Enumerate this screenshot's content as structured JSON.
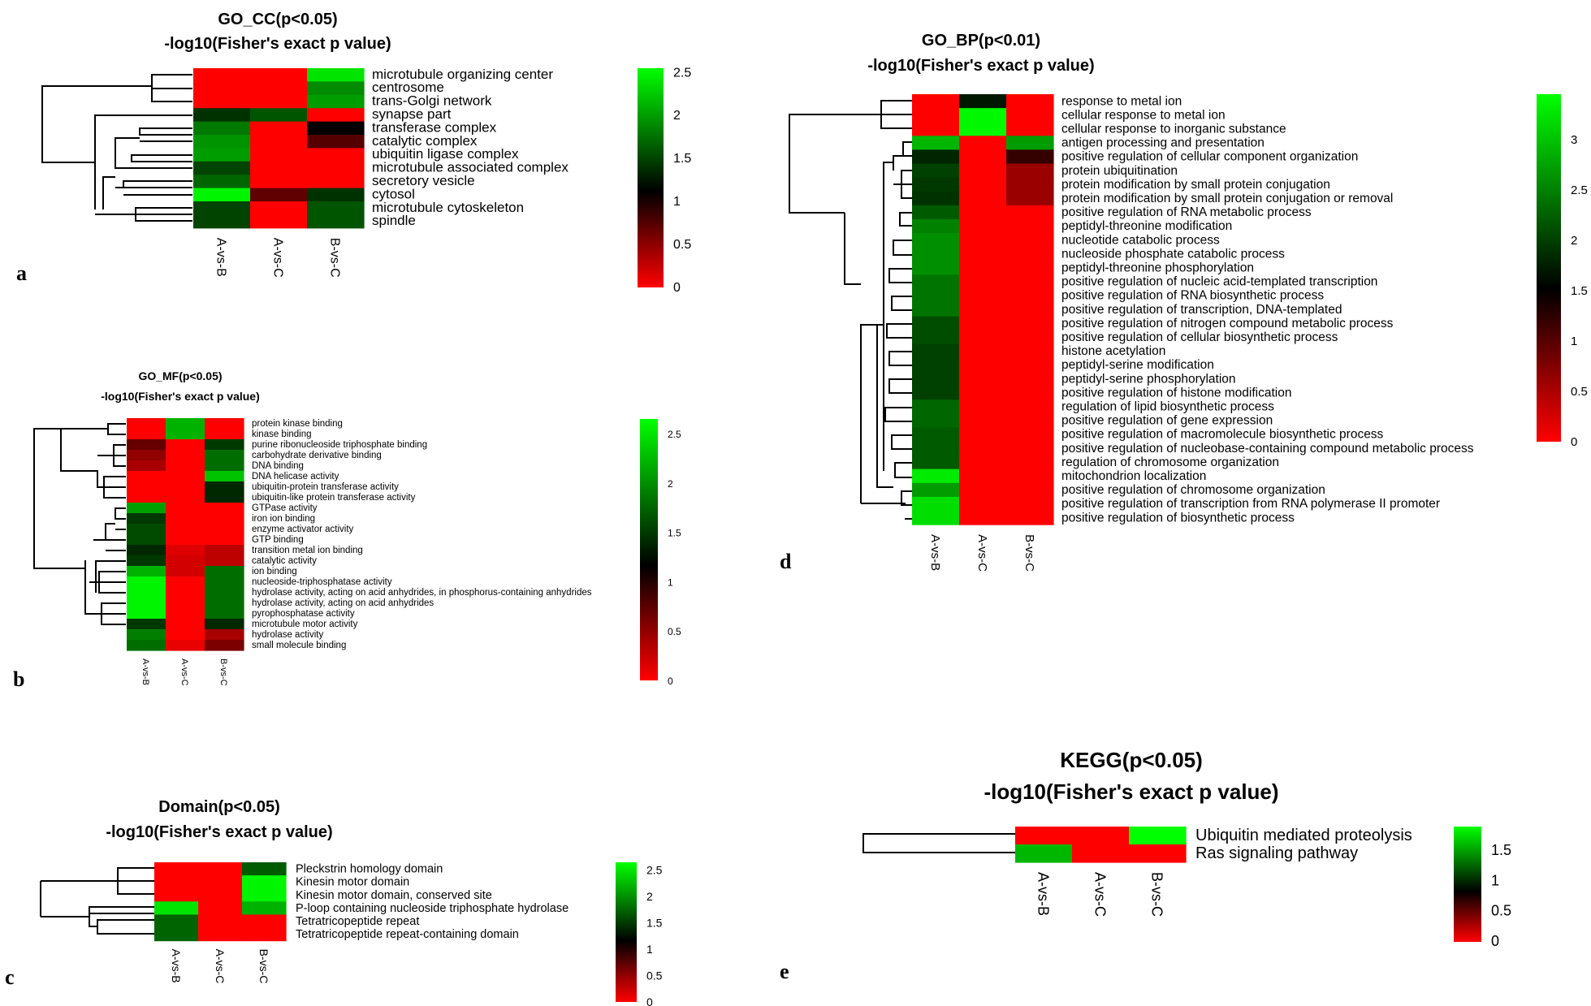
{
  "colors": {
    "low": "#ff0000",
    "mid": "#000000",
    "high": "#00ff00"
  },
  "chart_data": [
    {
      "panel": "a",
      "type": "heatmap",
      "title": "GO_CC(p<0.05)",
      "subtitle": "-log10(Fisher's exact p value)",
      "columns": [
        "A-vs-B",
        "A-vs-C",
        "B-vs-C"
      ],
      "rows": [
        "microtubule organizing center",
        "centrosome",
        "trans-Golgi network",
        "synapse part",
        "transferase complex",
        "catalytic complex",
        "ubiquitin ligase complex",
        "microtubule associated complex",
        "secretory vesicle",
        "cytosol",
        "microtubule cytoskeleton",
        "spindle"
      ],
      "values": [
        [
          0,
          0,
          2.4
        ],
        [
          0,
          0,
          1.9
        ],
        [
          0,
          0,
          2.0
        ],
        [
          1.4,
          1.6,
          0
        ],
        [
          1.8,
          0,
          1.1
        ],
        [
          1.95,
          0,
          0.75
        ],
        [
          2.0,
          0,
          0
        ],
        [
          1.5,
          0,
          0
        ],
        [
          1.7,
          0,
          0
        ],
        [
          2.5,
          0.7,
          1.4
        ],
        [
          1.5,
          0,
          1.6
        ],
        [
          1.5,
          0,
          1.6
        ]
      ],
      "scale_ticks": [
        "2.5",
        "2",
        "1.5",
        "1",
        "0.5",
        "0"
      ],
      "vmax": 2.55
    },
    {
      "panel": "b",
      "type": "heatmap",
      "title": "GO_MF(p<0.05)",
      "subtitle": "-log10(Fisher's exact p value)",
      "columns": [
        "A-vs-B",
        "A-vs-C",
        "B-vs-C"
      ],
      "rows": [
        "protein kinase binding",
        "kinase binding",
        "purine ribonucleoside triphosphate binding",
        "carbohydrate derivative binding",
        "DNA binding",
        "DNA helicase activity",
        "ubiquitin-protein transferase activity",
        "ubiquitin-like protein transferase activity",
        "GTPase activity",
        "iron ion binding",
        "enzyme activator activity",
        "GTP binding",
        "transition metal ion binding",
        "catalytic activity",
        "ion binding",
        "nucleoside-triphosphatase activity",
        "hydrolase activity, acting on acid anhydrides, in phosphorus-containing anhydrides",
        "hydrolase activity, acting on acid anhydrides",
        "pyrophosphatase activity",
        "microtubule motor activity",
        "hydrolase activity",
        "small molecule binding"
      ],
      "values": [
        [
          0,
          2.2,
          0
        ],
        [
          0,
          2.2,
          0
        ],
        [
          0.7,
          0,
          1.5
        ],
        [
          0.5,
          0,
          1.8
        ],
        [
          0.4,
          0,
          1.8
        ],
        [
          0,
          0,
          2.3
        ],
        [
          0,
          0,
          1.4
        ],
        [
          0,
          0,
          1.4
        ],
        [
          2.1,
          0,
          0
        ],
        [
          1.5,
          0,
          0
        ],
        [
          1.6,
          0,
          0
        ],
        [
          1.6,
          0,
          0
        ],
        [
          1.4,
          0.15,
          0.3
        ],
        [
          1.5,
          0.2,
          0.3
        ],
        [
          2.2,
          0.2,
          1.8
        ],
        [
          2.6,
          0,
          1.8
        ],
        [
          2.6,
          0,
          1.8
        ],
        [
          2.6,
          0,
          1.8
        ],
        [
          2.6,
          0,
          1.8
        ],
        [
          1.5,
          0,
          1.4
        ],
        [
          1.9,
          0,
          0.4
        ],
        [
          1.8,
          0.1,
          0.6
        ]
      ],
      "scale_ticks": [
        "2.5",
        "2",
        "1.5",
        "1",
        "0.5",
        "0"
      ],
      "vmax": 2.65
    },
    {
      "panel": "c",
      "type": "heatmap",
      "title": "Domain(p<0.05)",
      "subtitle": "-log10(Fisher's exact p value)",
      "columns": [
        "A-vs-B",
        "A-vs-C",
        "B-vs-C"
      ],
      "rows": [
        "Pleckstrin homology domain",
        "Kinesin motor domain",
        "Kinesin motor domain, conserved site",
        "P-loop containing nucleoside triphosphate hydrolase",
        "Tetratricopeptide repeat",
        "Tetratricopeptide repeat-containing domain"
      ],
      "values": [
        [
          0,
          0,
          1.7
        ],
        [
          0,
          0,
          2.6
        ],
        [
          0,
          0,
          2.6
        ],
        [
          2.5,
          0,
          2.2
        ],
        [
          1.75,
          0,
          0
        ],
        [
          1.75,
          0,
          0
        ]
      ],
      "scale_ticks": [
        "2.5",
        "2",
        "1.5",
        "1",
        "0.5",
        "0"
      ],
      "vmax": 2.65
    },
    {
      "panel": "d",
      "type": "heatmap",
      "title": "GO_BP(p<0.01)",
      "subtitle": "-log10(Fisher's exact p value)",
      "columns": [
        "A-vs-B",
        "A-vs-C",
        "B-vs-C"
      ],
      "rows": [
        "response to metal ion",
        "cellular response to metal ion",
        "cellular response to inorganic substance",
        "antigen processing and presentation",
        "positive regulation of cellular component organization",
        "protein ubiquitination",
        "protein modification by small protein conjugation",
        "protein modification by small protein conjugation or removal",
        "positive regulation of RNA metabolic process",
        "peptidyl-threonine modification",
        "nucleotide catabolic process",
        "nucleoside phosphate catabolic process",
        "peptidyl-threonine phosphorylation",
        "positive regulation of nucleic acid-templated transcription",
        "positive regulation of RNA biosynthetic process",
        "positive regulation of transcription, DNA-templated",
        "positive regulation of nitrogen compound metabolic process",
        "positive regulation of cellular biosynthetic process",
        "histone acetylation",
        "peptidyl-serine modification",
        "peptidyl-serine phosphorylation",
        "positive regulation of histone modification",
        "regulation of lipid biosynthetic process",
        "positive regulation of gene expression",
        "positive regulation of macromolecule biosynthetic process",
        "positive regulation of nucleobase-containing compound metabolic process",
        "regulation of chromosome organization",
        "mitochondrion localization",
        "positive regulation of chromosome organization",
        "positive regulation of transcription from RNA polymerase II promoter",
        "positive regulation of biosynthetic process"
      ],
      "values": [
        [
          0,
          1.7,
          0
        ],
        [
          0,
          3.4,
          0
        ],
        [
          0,
          3.4,
          0
        ],
        [
          2.9,
          0,
          2.7
        ],
        [
          1.8,
          0,
          1.2
        ],
        [
          2.0,
          0,
          0.6
        ],
        [
          1.95,
          0,
          0.6
        ],
        [
          1.9,
          0,
          0.6
        ],
        [
          2.2,
          0,
          0
        ],
        [
          2.5,
          0,
          0
        ],
        [
          2.6,
          0,
          0
        ],
        [
          2.6,
          0,
          0
        ],
        [
          2.6,
          0,
          0
        ],
        [
          2.4,
          0,
          0
        ],
        [
          2.4,
          0,
          0
        ],
        [
          2.4,
          0,
          0
        ],
        [
          2.1,
          0,
          0
        ],
        [
          2.1,
          0,
          0
        ],
        [
          2.0,
          0,
          0
        ],
        [
          2.0,
          0,
          0
        ],
        [
          2.0,
          0,
          0
        ],
        [
          2.0,
          0,
          0
        ],
        [
          2.3,
          0,
          0
        ],
        [
          2.3,
          0,
          0
        ],
        [
          2.2,
          0,
          0
        ],
        [
          2.2,
          0,
          0
        ],
        [
          2.2,
          0,
          0
        ],
        [
          3.3,
          0,
          0
        ],
        [
          2.7,
          0,
          0
        ],
        [
          3.2,
          0,
          0
        ],
        [
          3.2,
          0,
          0
        ]
      ],
      "scale_ticks": [
        "3",
        "2.5",
        "2",
        "1.5",
        "1",
        "0.5",
        "0"
      ],
      "vmax": 3.45
    },
    {
      "panel": "e",
      "type": "heatmap",
      "title": "KEGG(p<0.05)",
      "subtitle": "-log10(Fisher's exact p value)",
      "columns": [
        "A-vs-B",
        "A-vs-C",
        "B-vs-C"
      ],
      "rows": [
        "Ubiquitin mediated proteolysis",
        "Ras signaling pathway"
      ],
      "values": [
        [
          0,
          0,
          1.9
        ],
        [
          1.6,
          0,
          0
        ]
      ],
      "scale_ticks": [
        "1.5",
        "1",
        "0.5",
        "0"
      ],
      "vmax": 1.9
    }
  ]
}
